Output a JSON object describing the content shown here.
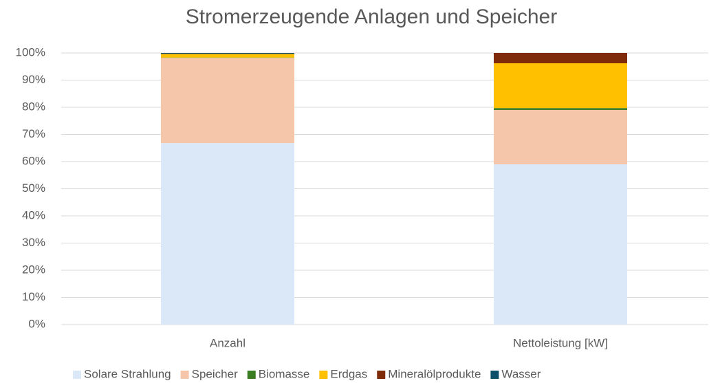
{
  "chart_data": {
    "type": "stacked_bar",
    "title": "Stromerzeugende Anlagen und Speicher",
    "categories": [
      "Anzahl",
      "Nettoleistung [kW]"
    ],
    "series": [
      {
        "name": "Solare Strahlung",
        "color": "#dae8f7",
        "values": [
          66.8,
          59.0
        ]
      },
      {
        "name": "Speicher",
        "color": "#f5c6aa",
        "values": [
          31.4,
          20.0
        ]
      },
      {
        "name": "Biomasse",
        "color": "#3a7d22",
        "values": [
          0.1,
          0.7
        ]
      },
      {
        "name": "Erdgas",
        "color": "#ffc000",
        "values": [
          1.3,
          16.5
        ]
      },
      {
        "name": "Mineralölprodukte",
        "color": "#7f2b0a",
        "values": [
          0.1,
          3.8
        ]
      },
      {
        "name": "Wasser",
        "color": "#0e4f69",
        "values": [
          0.3,
          0.0
        ]
      }
    ],
    "ylim": [
      0,
      100
    ],
    "yticks": [
      {
        "value": 0,
        "label": "0%"
      },
      {
        "value": 10,
        "label": "10%"
      },
      {
        "value": 20,
        "label": "20%"
      },
      {
        "value": 30,
        "label": "30%"
      },
      {
        "value": 40,
        "label": "40%"
      },
      {
        "value": 50,
        "label": "50%"
      },
      {
        "value": 60,
        "label": "60%"
      },
      {
        "value": 70,
        "label": "70%"
      },
      {
        "value": 80,
        "label": "80%"
      },
      {
        "value": 90,
        "label": "90%"
      },
      {
        "value": 100,
        "label": "100%"
      }
    ],
    "grid": true,
    "legend": "bottom"
  }
}
